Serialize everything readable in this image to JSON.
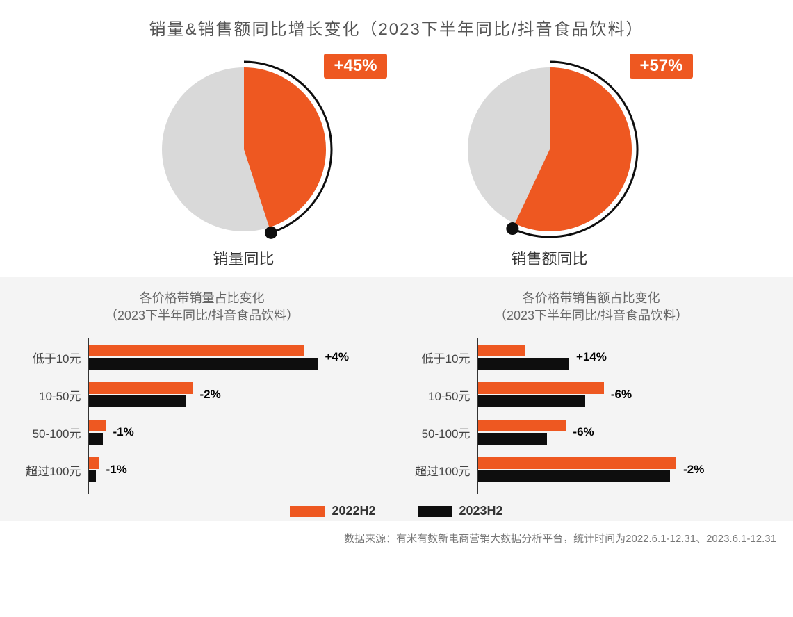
{
  "colors": {
    "orange": "#ee5821",
    "black": "#0e0e0e",
    "grey_slice": "#d9d9d9",
    "grey_bg": "#f4f4f4",
    "text_title": "#555555",
    "text_body": "#444444",
    "axis": "#333333"
  },
  "main_title": "销量&销售额同比增长变化（2023下半年同比/抖音食品饮料）",
  "pies": [
    {
      "label": "销量同比",
      "badge": "+45%",
      "percent_orange": 45,
      "orange_hex": "#ee5821",
      "grey_hex": "#d9d9d9",
      "radius": 118,
      "arc_stroke": "#0e0e0e",
      "arc_stroke_w": 3,
      "dot_r": 9
    },
    {
      "label": "销售额同比",
      "badge": "+57%",
      "percent_orange": 57,
      "orange_hex": "#ee5821",
      "grey_hex": "#d9d9d9",
      "radius": 118,
      "arc_stroke": "#0e0e0e",
      "arc_stroke_w": 3,
      "dot_r": 9
    }
  ],
  "bar_charts": [
    {
      "title_l1": "各价格带销量占比变化",
      "title_l2": "（2023下半年同比/抖音食品饮料）",
      "max_value": 68,
      "rows": [
        {
          "cat": "低于10元",
          "v2022": 62,
          "v2023": 66,
          "change": "+4%"
        },
        {
          "cat": "10-50元",
          "v2022": 30,
          "v2023": 28,
          "change": "-2%"
        },
        {
          "cat": "50-100元",
          "v2022": 5,
          "v2023": 4,
          "change": "-1%"
        },
        {
          "cat": "超过100元",
          "v2022": 3,
          "v2023": 2,
          "change": "-1%"
        }
      ]
    },
    {
      "title_l1": "各价格带销售额占比变化",
      "title_l2": "（2023下半年同比/抖音食品饮料）",
      "max_value": 75,
      "rows": [
        {
          "cat": "低于10元",
          "v2022": 15,
          "v2023": 29,
          "change": "+14%"
        },
        {
          "cat": "10-50元",
          "v2022": 40,
          "v2023": 34,
          "change": "-6%"
        },
        {
          "cat": "50-100元",
          "v2022": 28,
          "v2023": 22,
          "change": "-6%"
        },
        {
          "cat": "超过100元",
          "v2022": 63,
          "v2023": 61,
          "change": "-2%"
        }
      ]
    }
  ],
  "legend": {
    "a_label": "2022H2",
    "a_color": "#ee5821",
    "b_label": "2023H2",
    "b_color": "#0e0e0e"
  },
  "footer": "数据来源：有米有数新电商营销大数据分析平台，统计时间为2022.6.1-12.31、2023.6.1-12.31",
  "typography": {
    "title_fontsize": 24,
    "pie_label_fontsize": 22,
    "badge_fontsize": 24,
    "bar_title_fontsize": 18,
    "bar_cat_fontsize": 17,
    "bar_change_fontsize": 17,
    "legend_fontsize": 18,
    "footer_fontsize": 15
  }
}
